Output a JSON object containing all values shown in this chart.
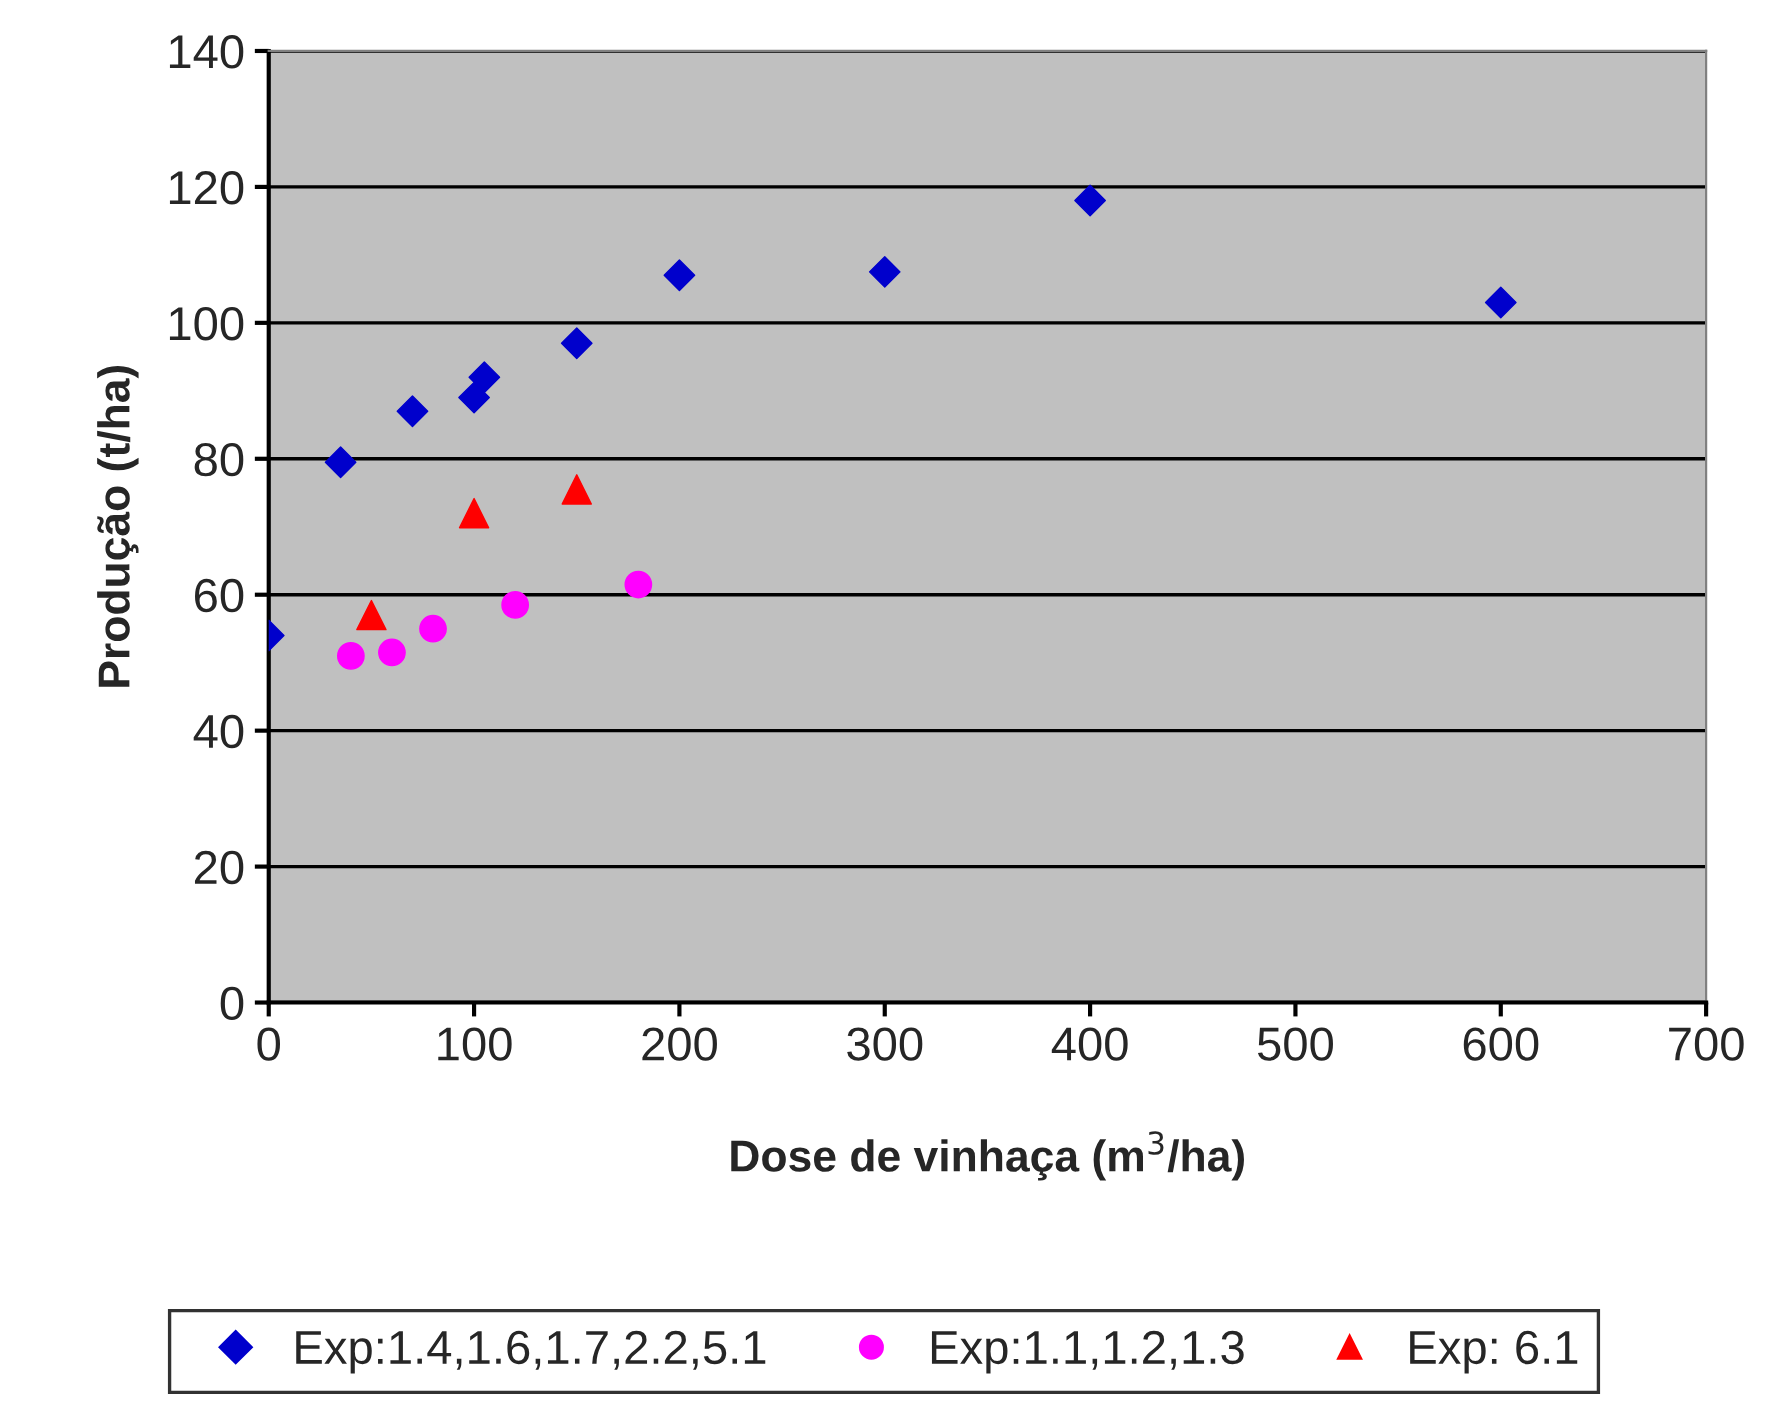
{
  "chart_data": {
    "type": "scatter",
    "xlabel": "Dose de vinhaça (m$^{3}$/ha)",
    "ylabel": "Produção (t/ha)",
    "xlim": [
      0,
      700
    ],
    "xticks": [
      0,
      100,
      200,
      300,
      400,
      500,
      600,
      700
    ],
    "ylim": [
      0,
      140
    ],
    "yticks": [
      0,
      20,
      40,
      60,
      80,
      100,
      120,
      140
    ],
    "grid": "y",
    "legend": "bottom",
    "series": [
      {
        "name": "Exp:1.4,1.6,1.7,2.2,5.1",
        "color": "#0000cc",
        "marker": "diamond",
        "x": [
          0,
          35,
          70,
          100,
          105,
          150,
          200,
          300,
          400,
          600
        ],
        "values": [
          54,
          79.5,
          87,
          89,
          92,
          97,
          107,
          107.5,
          118,
          103
        ]
      },
      {
        "name": "Exp:1.1,1.2,1.3",
        "color": "#ff00ff",
        "marker": "circle",
        "x": [
          40,
          60,
          80,
          120,
          180
        ],
        "values": [
          51,
          51.5,
          55,
          58.5,
          61.5
        ]
      },
      {
        "name": "Exp: 6.1",
        "color": "#ff0000",
        "marker": "triangle",
        "x": [
          50,
          100,
          150
        ],
        "values": [
          57,
          72,
          75.5
        ]
      }
    ]
  }
}
